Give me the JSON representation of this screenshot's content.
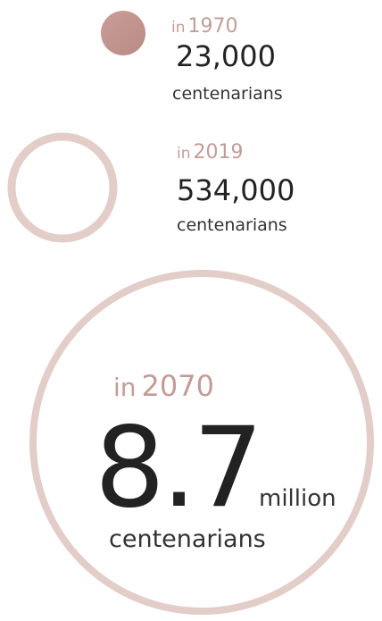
{
  "items": [
    {
      "prefix": "in",
      "year": "1970",
      "value": "23,000",
      "label": "centenarians"
    },
    {
      "prefix": "in",
      "year": "2019",
      "value": "534,000",
      "label": "centenarians"
    },
    {
      "prefix": "in",
      "year": "2070",
      "value": "8.7",
      "unit": "million",
      "label": "centenarians"
    }
  ]
}
